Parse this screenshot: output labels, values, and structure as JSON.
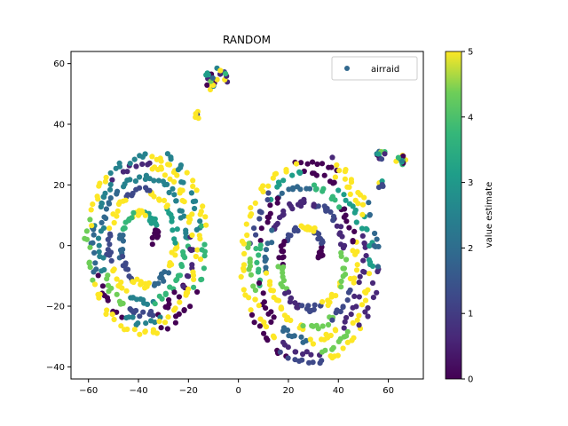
{
  "chart_data": {
    "type": "scatter",
    "title": "RANDOM",
    "xlabel": "",
    "ylabel": "",
    "xlim": [
      -67,
      74
    ],
    "ylim": [
      -44,
      64
    ],
    "xticks": [
      -60,
      -40,
      -20,
      0,
      20,
      40,
      60
    ],
    "yticks": [
      -40,
      -20,
      0,
      20,
      40,
      60
    ],
    "legend": {
      "placement": "top-right",
      "entries": [
        "airraid"
      ]
    },
    "colorbar": {
      "label": "value estimate",
      "range": [
        0,
        5
      ],
      "ticks": [
        0,
        1,
        2,
        3,
        4,
        5
      ],
      "colormap": "viridis"
    },
    "series": [
      {
        "name": "airraid",
        "clusters": [
          {
            "region": "left-spiral",
            "x_range": [
              -62,
              -13
            ],
            "y_range": [
              -30,
              32
            ],
            "count": 420,
            "shape": "spiral"
          },
          {
            "region": "right-spiral",
            "x_range": [
              0,
              56
            ],
            "y_range": [
              -40,
              30
            ],
            "count": 460,
            "shape": "spiral"
          },
          {
            "region": "top-cluster",
            "center": [
              -9,
              55
            ],
            "spread": [
              5,
              4
            ],
            "count": 22
          },
          {
            "region": "small-cluster",
            "center": [
              -17,
              43
            ],
            "spread": [
              1.5,
              1.5
            ],
            "count": 5
          },
          {
            "region": "far-right-cluster-1",
            "center": [
              57,
              30
            ],
            "spread": [
              2,
              2
            ],
            "count": 12
          },
          {
            "region": "far-right-cluster-2",
            "center": [
              65,
              28
            ],
            "spread": [
              2,
              2
            ],
            "count": 12
          },
          {
            "region": "far-right-cluster-3",
            "center": [
              57,
              20
            ],
            "spread": [
              1,
              1.5
            ],
            "count": 5
          }
        ]
      }
    ]
  }
}
